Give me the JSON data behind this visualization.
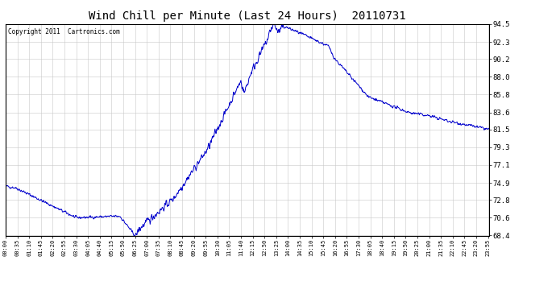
{
  "title": "Wind Chill per Minute (Last 24 Hours)  20110731",
  "copyright_text": "Copyright 2011  Cartronics.com",
  "line_color": "#0000CC",
  "background_color": "#ffffff",
  "plot_bg_color": "#ffffff",
  "grid_color": "#c8c8c8",
  "yticks": [
    68.4,
    70.6,
    72.8,
    74.9,
    77.1,
    79.3,
    81.5,
    83.6,
    85.8,
    88.0,
    90.2,
    92.3,
    94.5
  ],
  "ymin": 68.4,
  "ymax": 94.5,
  "xtick_labels": [
    "00:00",
    "00:35",
    "01:10",
    "01:45",
    "02:20",
    "02:55",
    "03:30",
    "04:05",
    "04:40",
    "05:15",
    "05:50",
    "06:25",
    "07:00",
    "07:35",
    "08:10",
    "08:45",
    "09:20",
    "09:55",
    "10:30",
    "11:05",
    "11:40",
    "12:15",
    "12:50",
    "13:25",
    "14:00",
    "14:35",
    "15:10",
    "15:45",
    "16:20",
    "16:55",
    "17:30",
    "18:05",
    "18:40",
    "19:15",
    "19:50",
    "20:25",
    "21:00",
    "21:35",
    "22:10",
    "22:45",
    "23:20",
    "23:55"
  ],
  "curve_keypoints_x": [
    0,
    30,
    210,
    340,
    385,
    405,
    500,
    600,
    700,
    710,
    730,
    790,
    800,
    815,
    830,
    870,
    960,
    980,
    1080,
    1200,
    1260,
    1320,
    1380,
    1439
  ],
  "curve_keypoints_y": [
    74.5,
    74.3,
    70.6,
    70.8,
    68.4,
    69.5,
    73.0,
    79.0,
    87.5,
    86.0,
    88.5,
    93.5,
    94.5,
    93.8,
    94.2,
    93.5,
    91.8,
    90.2,
    85.5,
    83.6,
    83.2,
    82.5,
    82.0,
    81.5
  ]
}
